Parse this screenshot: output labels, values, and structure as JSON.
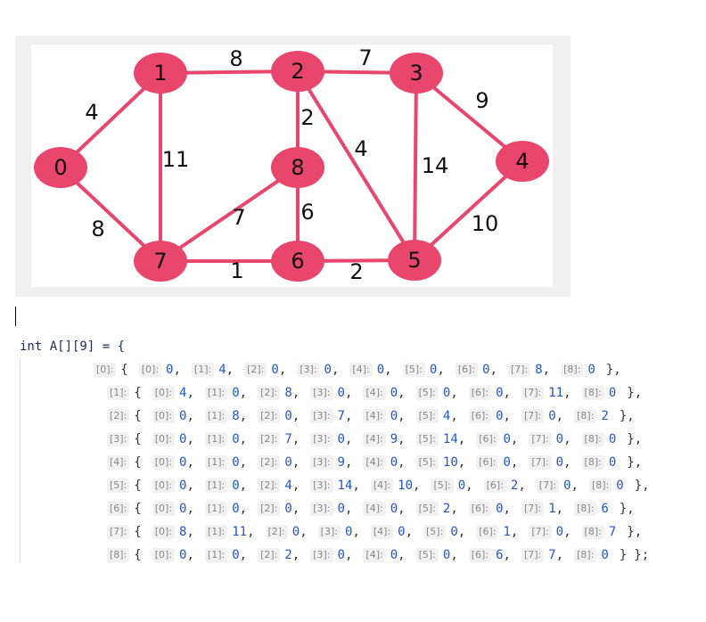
{
  "graph": {
    "nodes": [
      {
        "label": 0
      },
      {
        "label": 1
      },
      {
        "label": 2
      },
      {
        "label": 3
      },
      {
        "label": 4
      },
      {
        "label": 5
      },
      {
        "label": 6
      },
      {
        "label": 7
      },
      {
        "label": 8
      }
    ],
    "edges": [
      {
        "from": 0,
        "to": 1,
        "weight": 4
      },
      {
        "from": 0,
        "to": 7,
        "weight": 8
      },
      {
        "from": 1,
        "to": 2,
        "weight": 8
      },
      {
        "from": 1,
        "to": 7,
        "weight": 11
      },
      {
        "from": 2,
        "to": 3,
        "weight": 7
      },
      {
        "from": 2,
        "to": 8,
        "weight": 2
      },
      {
        "from": 2,
        "to": 5,
        "weight": 4
      },
      {
        "from": 3,
        "to": 4,
        "weight": 9
      },
      {
        "from": 3,
        "to": 5,
        "weight": 14
      },
      {
        "from": 4,
        "to": 5,
        "weight": 10
      },
      {
        "from": 7,
        "to": 8,
        "weight": 7
      },
      {
        "from": 8,
        "to": 6,
        "weight": 6
      },
      {
        "from": 7,
        "to": 6,
        "weight": 1
      },
      {
        "from": 6,
        "to": 5,
        "weight": 2
      }
    ]
  },
  "code": {
    "declaration": "int A[][9] = {",
    "open_brace": "{",
    "close_brace": "}",
    "separator": ",",
    "final_close": "};",
    "index_hints": [
      "[0]:",
      "[1]:",
      "[2]:",
      "[3]:",
      "[4]:",
      "[5]:",
      "[6]:",
      "[7]:",
      "[8]:"
    ],
    "matrix": [
      [
        0,
        4,
        0,
        0,
        0,
        0,
        0,
        8,
        0
      ],
      [
        4,
        0,
        8,
        0,
        0,
        0,
        0,
        11,
        0
      ],
      [
        0,
        8,
        0,
        7,
        0,
        4,
        0,
        0,
        2
      ],
      [
        0,
        0,
        7,
        0,
        9,
        14,
        0,
        0,
        0
      ],
      [
        0,
        0,
        0,
        9,
        0,
        10,
        0,
        0,
        0
      ],
      [
        0,
        0,
        4,
        14,
        10,
        0,
        2,
        0,
        0
      ],
      [
        0,
        0,
        0,
        0,
        0,
        2,
        0,
        1,
        6
      ],
      [
        8,
        11,
        0,
        0,
        0,
        0,
        1,
        0,
        7
      ],
      [
        0,
        0,
        2,
        0,
        0,
        0,
        6,
        7,
        0
      ]
    ]
  }
}
